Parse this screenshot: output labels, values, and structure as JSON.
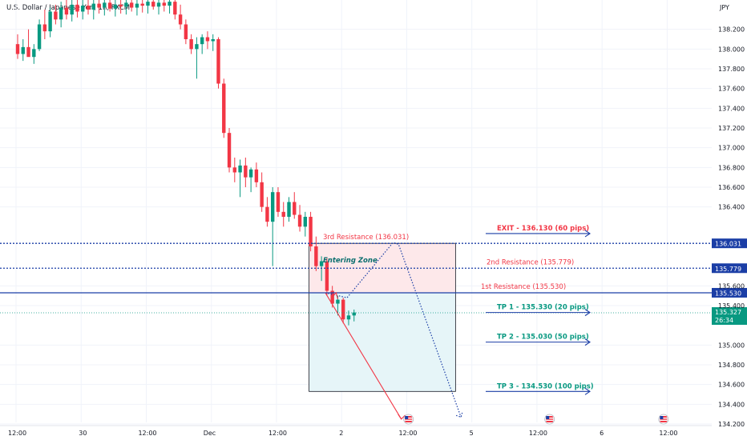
{
  "chart_data": {
    "type": "candlestick",
    "title": "U.S. Dollar / Japanese Yen, 1h, FXCM",
    "currency": "JPY",
    "ylim": [
      134.2,
      138.4
    ],
    "y_ticks": [
      {
        "value": 138.2,
        "label": "138.200"
      },
      {
        "value": 138.0,
        "label": "138.000"
      },
      {
        "value": 137.8,
        "label": "137.800"
      },
      {
        "value": 137.6,
        "label": "137.600"
      },
      {
        "value": 137.4,
        "label": "137.400"
      },
      {
        "value": 137.2,
        "label": "137.200"
      },
      {
        "value": 137.0,
        "label": "137.000"
      },
      {
        "value": 136.8,
        "label": "136.800"
      },
      {
        "value": 136.6,
        "label": "136.600"
      },
      {
        "value": 136.4,
        "label": "136.400"
      },
      {
        "value": 135.6,
        "label": "135.600"
      },
      {
        "value": 135.4,
        "label": "135.400"
      },
      {
        "value": 135.0,
        "label": "135.000"
      },
      {
        "value": 134.8,
        "label": "134.800"
      },
      {
        "value": 134.6,
        "label": "134.600"
      },
      {
        "value": 134.4,
        "label": "134.400"
      },
      {
        "value": 134.2,
        "label": "134.200"
      }
    ],
    "x_labels": [
      {
        "label": "12:00",
        "hour": 0
      },
      {
        "label": "30",
        "hour": 12
      },
      {
        "label": "12:00",
        "hour": 24
      },
      {
        "label": "Dec",
        "hour": 36
      },
      {
        "label": "12:00",
        "hour": 48
      },
      {
        "label": "2",
        "hour": 60
      },
      {
        "label": "12:00",
        "hour": 72
      },
      {
        "label": "5",
        "hour": 84
      },
      {
        "label": "12:00",
        "hour": 96
      },
      {
        "label": "6",
        "hour": 108
      },
      {
        "label": "12:00",
        "hour": 120
      }
    ],
    "candles": [
      {
        "o": 138.05,
        "h": 138.15,
        "l": 137.9,
        "c": 137.95
      },
      {
        "o": 137.95,
        "h": 138.1,
        "l": 137.88,
        "c": 138.02
      },
      {
        "o": 138.02,
        "h": 138.2,
        "l": 137.95,
        "c": 137.92
      },
      {
        "o": 137.92,
        "h": 138.05,
        "l": 137.85,
        "c": 138.0
      },
      {
        "o": 138.0,
        "h": 138.3,
        "l": 137.98,
        "c": 138.25
      },
      {
        "o": 138.25,
        "h": 138.4,
        "l": 138.1,
        "c": 138.18
      },
      {
        "o": 138.18,
        "h": 138.42,
        "l": 138.12,
        "c": 138.38
      },
      {
        "o": 138.38,
        "h": 138.45,
        "l": 138.25,
        "c": 138.3
      },
      {
        "o": 138.3,
        "h": 138.48,
        "l": 138.22,
        "c": 138.42
      },
      {
        "o": 138.42,
        "h": 138.5,
        "l": 138.3,
        "c": 138.35
      },
      {
        "o": 138.35,
        "h": 138.5,
        "l": 138.28,
        "c": 138.45
      },
      {
        "o": 138.45,
        "h": 138.5,
        "l": 138.32,
        "c": 138.38
      },
      {
        "o": 138.38,
        "h": 138.5,
        "l": 138.3,
        "c": 138.44
      },
      {
        "o": 138.44,
        "h": 138.5,
        "l": 138.35,
        "c": 138.4
      },
      {
        "o": 138.4,
        "h": 138.5,
        "l": 138.3,
        "c": 138.46
      },
      {
        "o": 138.46,
        "h": 138.5,
        "l": 138.36,
        "c": 138.42
      },
      {
        "o": 138.42,
        "h": 138.5,
        "l": 138.34,
        "c": 138.47
      },
      {
        "o": 138.47,
        "h": 138.5,
        "l": 138.38,
        "c": 138.41
      },
      {
        "o": 138.41,
        "h": 138.5,
        "l": 138.33,
        "c": 138.45
      },
      {
        "o": 138.45,
        "h": 138.5,
        "l": 138.36,
        "c": 138.43
      },
      {
        "o": 138.43,
        "h": 138.5,
        "l": 138.35,
        "c": 138.47
      },
      {
        "o": 138.47,
        "h": 138.5,
        "l": 138.38,
        "c": 138.42
      },
      {
        "o": 138.42,
        "h": 138.5,
        "l": 138.34,
        "c": 138.46
      },
      {
        "o": 138.46,
        "h": 138.5,
        "l": 138.37,
        "c": 138.44
      },
      {
        "o": 138.44,
        "h": 138.5,
        "l": 138.36,
        "c": 138.48
      },
      {
        "o": 138.48,
        "h": 138.5,
        "l": 138.4,
        "c": 138.43
      },
      {
        "o": 138.43,
        "h": 138.5,
        "l": 138.35,
        "c": 138.47
      },
      {
        "o": 138.47,
        "h": 138.5,
        "l": 138.38,
        "c": 138.44
      },
      {
        "o": 138.44,
        "h": 138.5,
        "l": 138.36,
        "c": 138.48
      },
      {
        "o": 138.48,
        "h": 138.5,
        "l": 138.3,
        "c": 138.35
      },
      {
        "o": 138.35,
        "h": 138.45,
        "l": 138.2,
        "c": 138.25
      },
      {
        "o": 138.25,
        "h": 138.3,
        "l": 138.05,
        "c": 138.1
      },
      {
        "o": 138.1,
        "h": 138.15,
        "l": 137.95,
        "c": 138.0
      },
      {
        "o": 138.0,
        "h": 138.12,
        "l": 137.7,
        "c": 138.05
      },
      {
        "o": 138.05,
        "h": 138.15,
        "l": 137.95,
        "c": 138.12
      },
      {
        "o": 138.12,
        "h": 138.18,
        "l": 138.0,
        "c": 138.08
      },
      {
        "o": 138.08,
        "h": 138.15,
        "l": 137.98,
        "c": 138.1
      },
      {
        "o": 138.1,
        "h": 138.12,
        "l": 137.6,
        "c": 137.65
      },
      {
        "o": 137.65,
        "h": 137.7,
        "l": 137.1,
        "c": 137.15
      },
      {
        "o": 137.15,
        "h": 137.2,
        "l": 136.75,
        "c": 136.8
      },
      {
        "o": 136.8,
        "h": 136.9,
        "l": 136.65,
        "c": 136.75
      },
      {
        "o": 136.75,
        "h": 136.88,
        "l": 136.5,
        "c": 136.82
      },
      {
        "o": 136.82,
        "h": 136.9,
        "l": 136.6,
        "c": 136.7
      },
      {
        "o": 136.7,
        "h": 136.8,
        "l": 136.55,
        "c": 136.78
      },
      {
        "o": 136.78,
        "h": 136.85,
        "l": 136.6,
        "c": 136.65
      },
      {
        "o": 136.65,
        "h": 136.75,
        "l": 136.35,
        "c": 136.4
      },
      {
        "o": 136.4,
        "h": 136.5,
        "l": 136.2,
        "c": 136.25
      },
      {
        "o": 136.25,
        "h": 136.6,
        "l": 135.8,
        "c": 136.55
      },
      {
        "o": 136.55,
        "h": 136.6,
        "l": 136.3,
        "c": 136.35
      },
      {
        "o": 136.35,
        "h": 136.45,
        "l": 136.2,
        "c": 136.3
      },
      {
        "o": 136.3,
        "h": 136.5,
        "l": 136.25,
        "c": 136.45
      },
      {
        "o": 136.45,
        "h": 136.55,
        "l": 136.28,
        "c": 136.32
      },
      {
        "o": 136.32,
        "h": 136.42,
        "l": 136.15,
        "c": 136.2
      },
      {
        "o": 136.2,
        "h": 136.35,
        "l": 136.1,
        "c": 136.3
      },
      {
        "o": 136.3,
        "h": 136.35,
        "l": 135.95,
        "c": 136.0
      },
      {
        "o": 136.0,
        "h": 136.1,
        "l": 135.75,
        "c": 135.8
      },
      {
        "o": 135.8,
        "h": 135.9,
        "l": 135.65,
        "c": 135.85
      },
      {
        "o": 135.85,
        "h": 135.88,
        "l": 135.5,
        "c": 135.55
      },
      {
        "o": 135.55,
        "h": 135.6,
        "l": 135.38,
        "c": 135.42
      },
      {
        "o": 135.42,
        "h": 135.5,
        "l": 135.3,
        "c": 135.46
      },
      {
        "o": 135.46,
        "h": 135.48,
        "l": 135.22,
        "c": 135.26
      },
      {
        "o": 135.26,
        "h": 135.35,
        "l": 135.2,
        "c": 135.3
      },
      {
        "o": 135.3,
        "h": 135.36,
        "l": 135.24,
        "c": 135.33
      }
    ],
    "last_price": {
      "label": "135.327",
      "countdown": "26:34"
    },
    "levels": [
      {
        "value": 136.031,
        "style": "dotted",
        "color": "#1b3ea6",
        "tag": "136.031",
        "label": "3rd Resistance (136.031)",
        "label_color": "#f23645"
      },
      {
        "value": 135.779,
        "style": "dotted",
        "color": "#1b3ea6",
        "tag": "135.779",
        "label": "2nd Resistance (135.779)",
        "label_color": "#f23645"
      },
      {
        "value": 135.53,
        "style": "solid",
        "color": "#1b3ea6",
        "tag": "135.530",
        "label": "1st Resistance (135.530)",
        "label_color": "#f23645"
      }
    ],
    "targets": [
      {
        "label": "EXIT - 136.130 (60 pips)",
        "value": 136.13,
        "color": "#f23645"
      },
      {
        "label": "TP 1 - 135.330 (20 pips)",
        "value": 135.33,
        "color": "#089981"
      },
      {
        "label": "TP 2 - 135.030 (50 pips)",
        "value": 135.03,
        "color": "#089981"
      },
      {
        "label": "TP 3 - 134.530 (100 pips)",
        "value": 134.53,
        "color": "#089981"
      }
    ],
    "entering_zone_label": "Entering Zone",
    "position_box": {
      "entry": 135.53,
      "stop": 136.031,
      "target": 134.53,
      "from_hour": 54,
      "to_hour": 81
    },
    "colors": {
      "up": "#089981",
      "down": "#f23645",
      "line": "#1b3ea6",
      "risk_fill": "#fde8ea",
      "reward_fill": "#e6f5f8"
    }
  }
}
